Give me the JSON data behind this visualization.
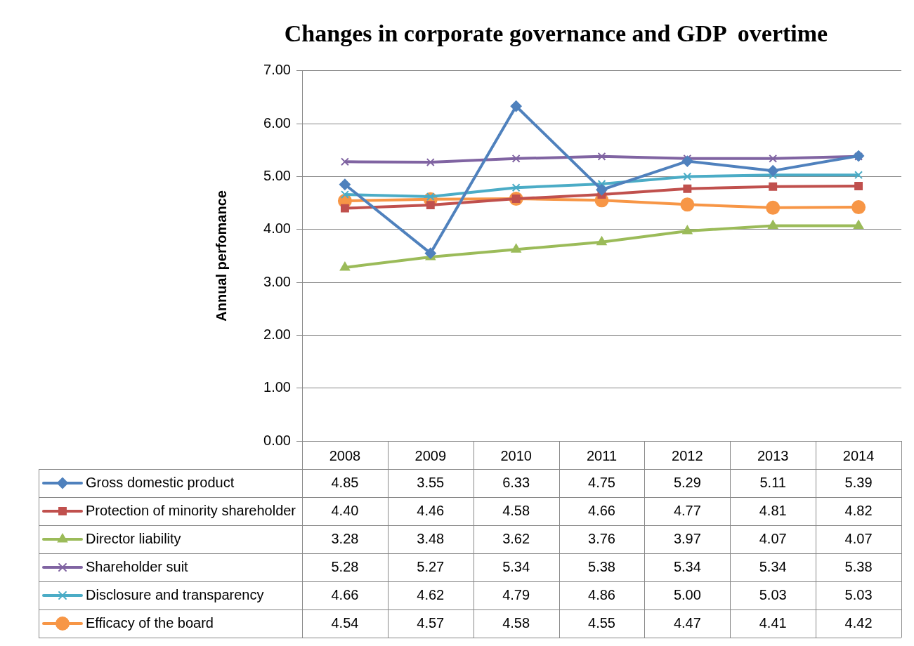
{
  "chart_data": {
    "type": "line",
    "title": "Changes in corporate governance and GDP  overtime",
    "ylabel": "Annual perfomance",
    "categories": [
      "2008",
      "2009",
      "2010",
      "2011",
      "2012",
      "2013",
      "2014"
    ],
    "ylim": [
      0,
      7
    ],
    "yticks": [
      {
        "value": 0,
        "label": "0.00"
      },
      {
        "value": 1,
        "label": "1.00"
      },
      {
        "value": 2,
        "label": "2.00"
      },
      {
        "value": 3,
        "label": "3.00"
      },
      {
        "value": 4,
        "label": "4.00"
      },
      {
        "value": 5,
        "label": "5.00"
      },
      {
        "value": 6,
        "label": "6.00"
      },
      {
        "value": 7,
        "label": "7.00"
      }
    ],
    "grid": "y",
    "legend": "bottom",
    "line_style": "solid",
    "series": [
      {
        "name": "Gross domestic product",
        "color": "#4f81bd",
        "marker": "diamond",
        "values": [
          4.85,
          3.55,
          6.33,
          4.75,
          5.29,
          5.11,
          5.39
        ],
        "value_labels": [
          "4.85",
          "3.55",
          "6.33",
          "4.75",
          "5.29",
          "5.11",
          "5.39"
        ]
      },
      {
        "name": "Protection of minority shareholder",
        "color": "#c0504d",
        "marker": "square",
        "values": [
          4.4,
          4.46,
          4.58,
          4.66,
          4.77,
          4.81,
          4.82
        ],
        "value_labels": [
          "4.40",
          "4.46",
          "4.58",
          "4.66",
          "4.77",
          "4.81",
          "4.82"
        ]
      },
      {
        "name": "Director liability",
        "color": "#9bbb59",
        "marker": "triangle",
        "values": [
          3.28,
          3.48,
          3.62,
          3.76,
          3.97,
          4.07,
          4.07
        ],
        "value_labels": [
          "3.28",
          "3.48",
          "3.62",
          "3.76",
          "3.97",
          "4.07",
          "4.07"
        ]
      },
      {
        "name": "Shareholder suit",
        "color": "#8064a2",
        "marker": "cross",
        "values": [
          5.28,
          5.27,
          5.34,
          5.38,
          5.34,
          5.34,
          5.38
        ],
        "value_labels": [
          "5.28",
          "5.27",
          "5.34",
          "5.38",
          "5.34",
          "5.34",
          "5.38"
        ]
      },
      {
        "name": "Disclosure and transparency",
        "color": "#4bacc6",
        "marker": "cross",
        "values": [
          4.66,
          4.62,
          4.79,
          4.86,
          5.0,
          5.03,
          5.03
        ],
        "value_labels": [
          "4.66",
          "4.62",
          "4.79",
          "4.86",
          "5.00",
          "5.03",
          "5.03"
        ]
      },
      {
        "name": "Efficacy of the board",
        "color": "#f79646",
        "marker": "circle",
        "values": [
          4.54,
          4.57,
          4.58,
          4.55,
          4.47,
          4.41,
          4.42
        ],
        "value_labels": [
          "4.54",
          "4.57",
          "4.58",
          "4.55",
          "4.47",
          "4.41",
          "4.42"
        ]
      }
    ]
  }
}
